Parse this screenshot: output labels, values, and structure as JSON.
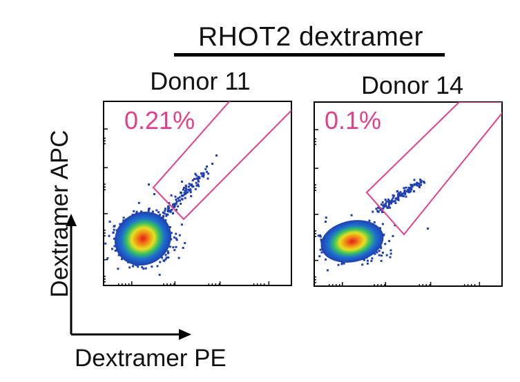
{
  "header": {
    "title": "RHOT2 dextramer"
  },
  "axes": {
    "ylabel": "Dextramer APC",
    "xlabel": "Dextramer PE"
  },
  "colors": {
    "gate": "#e0408a",
    "percent": "#e0408a",
    "density_low": "#1f3fb0",
    "density_high": "#e01010"
  },
  "chart_data": [
    {
      "type": "scatter",
      "panel": "Donor 11",
      "title": "Donor 11",
      "gate_percent": "0.21%",
      "gate": "diagonal rectangle",
      "density": "pseudocolor blue-green-yellow-red",
      "xlabel": "Dextramer PE",
      "ylabel": "Dextramer APC"
    },
    {
      "type": "scatter",
      "panel": "Donor 14",
      "title": "Donor 14",
      "gate_percent": "0.1%",
      "gate": "diagonal rectangle",
      "density": "pseudocolor blue-green-yellow-red",
      "xlabel": "Dextramer PE",
      "ylabel": "Dextramer APC"
    }
  ]
}
